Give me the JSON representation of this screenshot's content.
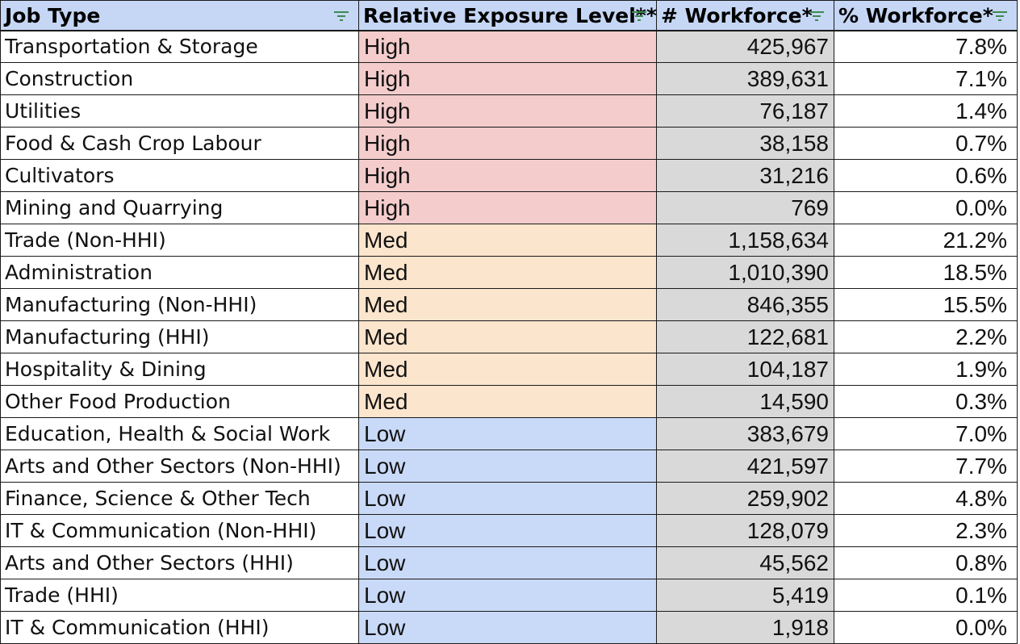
{
  "headers": {
    "job_type": "Job Type",
    "exposure": "Relative Exposure Level**",
    "workforce_count": "# Workforce*",
    "workforce_pct": "% Workforce*"
  },
  "icons": {
    "filter": "filter-icon",
    "filter_color": "#3c8a4e"
  },
  "level_colors": {
    "High": "#f4cccc",
    "Med": "#fce5cd",
    "Low": "#c9daf8"
  },
  "rows": [
    {
      "job": "Transportation & Storage",
      "level": "High",
      "count": "425,967",
      "pct": "7.8%"
    },
    {
      "job": "Construction",
      "level": "High",
      "count": "389,631",
      "pct": "7.1%"
    },
    {
      "job": "Utilities",
      "level": "High",
      "count": "76,187",
      "pct": "1.4%"
    },
    {
      "job": "Food & Cash Crop Labour",
      "level": "High",
      "count": "38,158",
      "pct": "0.7%"
    },
    {
      "job": "Cultivators",
      "level": "High",
      "count": "31,216",
      "pct": "0.6%"
    },
    {
      "job": "Mining and Quarrying",
      "level": "High",
      "count": "769",
      "pct": "0.0%"
    },
    {
      "job": "Trade (Non-HHI)",
      "level": "Med",
      "count": "1,158,634",
      "pct": "21.2%"
    },
    {
      "job": "Administration",
      "level": "Med",
      "count": "1,010,390",
      "pct": "18.5%"
    },
    {
      "job": "Manufacturing (Non-HHI)",
      "level": "Med",
      "count": "846,355",
      "pct": "15.5%"
    },
    {
      "job": "Manufacturing (HHI)",
      "level": "Med",
      "count": "122,681",
      "pct": "2.2%"
    },
    {
      "job": "Hospitality & Dining",
      "level": "Med",
      "count": "104,187",
      "pct": "1.9%"
    },
    {
      "job": "Other Food Production",
      "level": "Med",
      "count": "14,590",
      "pct": "0.3%"
    },
    {
      "job": "Education, Health & Social Work",
      "level": "Low",
      "count": "383,679",
      "pct": "7.0%"
    },
    {
      "job": "Arts and Other Sectors (Non-HHI)",
      "level": "Low",
      "count": "421,597",
      "pct": "7.7%"
    },
    {
      "job": "Finance, Science & Other Tech",
      "level": "Low",
      "count": "259,902",
      "pct": "4.8%"
    },
    {
      "job": "IT & Communication (Non-HHI)",
      "level": "Low",
      "count": "128,079",
      "pct": "2.3%"
    },
    {
      "job": "Arts and Other Sectors (HHI)",
      "level": "Low",
      "count": "45,562",
      "pct": "0.8%"
    },
    {
      "job": "Trade (HHI)",
      "level": "Low",
      "count": "5,419",
      "pct": "0.1%"
    },
    {
      "job": "IT & Communication (HHI)",
      "level": "Low",
      "count": "1,918",
      "pct": "0.0%"
    }
  ]
}
